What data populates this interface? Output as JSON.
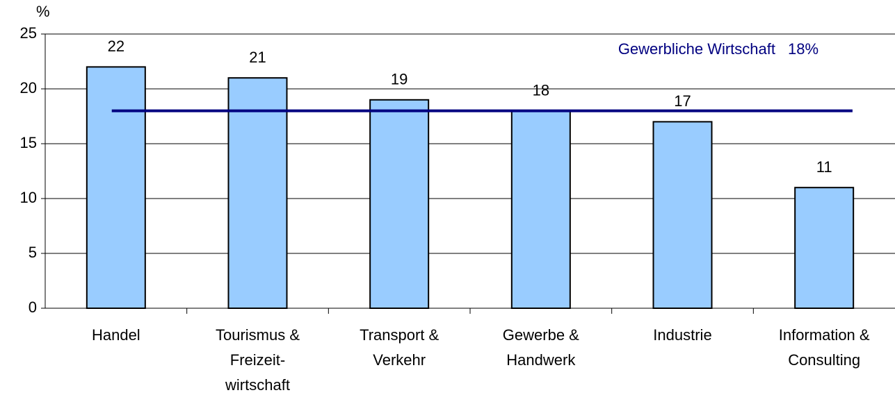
{
  "chart_data": {
    "type": "bar",
    "y_label": "%",
    "categories": [
      "Handel",
      "Tourismus &\nFreizeit-\nwirtschaft",
      "Transport &\nVerkehr",
      "Gewerbe &\nHandwerk",
      "Industrie",
      "Information &\nConsulting"
    ],
    "values": [
      22,
      21,
      19,
      18,
      17,
      11
    ],
    "color": "#99ccff",
    "ylim": [
      0,
      25
    ],
    "yticks": [
      0,
      5,
      10,
      15,
      20,
      25
    ],
    "grid": true,
    "reference_line": {
      "label": "Gewerbliche Wirtschaft",
      "value": 18,
      "value_label": "18%",
      "color": "#000080"
    }
  }
}
